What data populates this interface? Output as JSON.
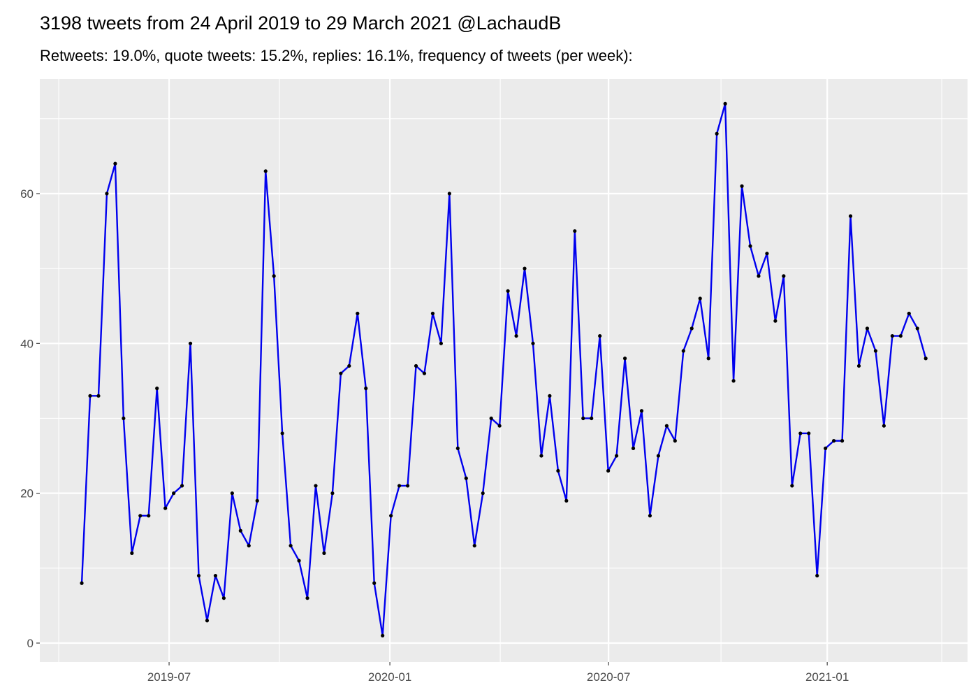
{
  "chart_data": {
    "type": "line",
    "title": "3198 tweets from 24 April 2019 to 29 March 2021 @LachaudB",
    "subtitle": "Retweets: 19.0%, quote tweets: 15.2%, replies: 16.1%, frequency of tweets (per week):",
    "series": [
      {
        "name": "tweets per week",
        "color": "#0000ee",
        "point_color": "#000000",
        "values": [
          8,
          33,
          33,
          60,
          64,
          30,
          12,
          17,
          17,
          34,
          18,
          20,
          21,
          40,
          9,
          3,
          9,
          6,
          20,
          15,
          13,
          19,
          63,
          49,
          28,
          13,
          11,
          6,
          21,
          12,
          20,
          36,
          37,
          44,
          34,
          8,
          1,
          17,
          21,
          21,
          37,
          36,
          44,
          40,
          60,
          26,
          22,
          13,
          20,
          30,
          29,
          47,
          41,
          50,
          40,
          25,
          33,
          23,
          19,
          55,
          30,
          30,
          41,
          23,
          25,
          38,
          26,
          31,
          17,
          25,
          29,
          27,
          39,
          42,
          46,
          38,
          68,
          72,
          35,
          61,
          53,
          49,
          52,
          43,
          49,
          21,
          28,
          28,
          9,
          26,
          27,
          27,
          57,
          37,
          42,
          39,
          29,
          41,
          41,
          44,
          42,
          38
        ]
      }
    ],
    "xlim": [
      -5.02,
      106.0
    ],
    "xticks": [
      {
        "value": 10.45,
        "label": "2019-07"
      },
      {
        "value": 36.87,
        "label": "2020-01"
      },
      {
        "value": 63.04,
        "label": "2020-07"
      },
      {
        "value": 89.21,
        "label": "2021-01"
      }
    ],
    "ylim": [
      -2.52,
      75.3
    ],
    "yticks": [
      0,
      20,
      40,
      60
    ],
    "grid": true
  }
}
